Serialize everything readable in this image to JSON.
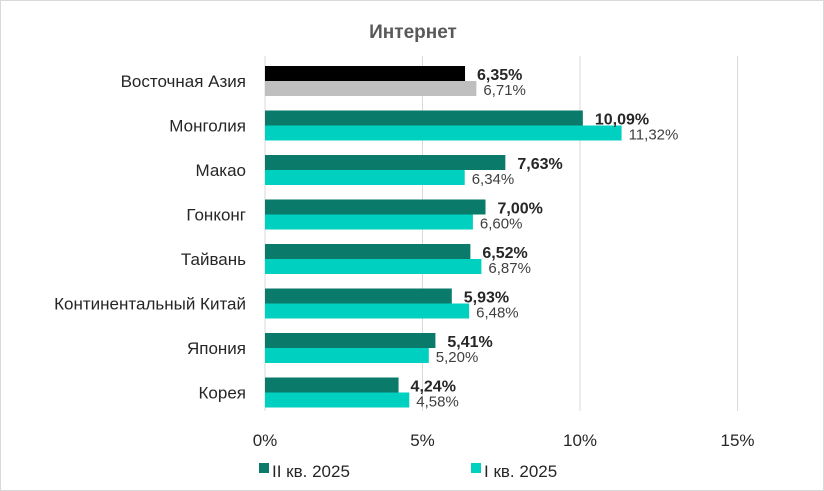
{
  "chart_data": {
    "type": "bar",
    "orientation": "horizontal",
    "title": "Интернет",
    "categories": [
      "Восточная Азия",
      "Монголия",
      "Макао",
      "Гонконг",
      "Тайвань",
      "Континентальный Китай",
      "Япония",
      "Корея"
    ],
    "series": [
      {
        "name": "II кв. 2025",
        "values": [
          6.35,
          10.09,
          7.63,
          7.0,
          6.52,
          5.93,
          5.41,
          4.24
        ],
        "labels": [
          "6,35%",
          "10,09%",
          "7,63%",
          "7,00%",
          "6,52%",
          "5,93%",
          "5,41%",
          "4,24%"
        ],
        "color": "#0a7a6a",
        "highlight_color": "#000000"
      },
      {
        "name": "I кв. 2025",
        "values": [
          6.71,
          11.32,
          6.34,
          6.6,
          6.87,
          6.48,
          5.2,
          4.58
        ],
        "labels": [
          "6,71%",
          "11,32%",
          "6,34%",
          "6,60%",
          "6,87%",
          "6,48%",
          "5,20%",
          "4,58%"
        ],
        "color": "#00d0c0",
        "highlight_color": "#bfbfbf"
      }
    ],
    "xlim": [
      0,
      15
    ],
    "xticks": [
      0,
      5,
      10,
      15
    ],
    "xtick_labels": [
      "0%",
      "5%",
      "10%",
      "15%"
    ],
    "grid": "vertical",
    "legend_position": "bottom",
    "gridline_color": "#d9d9d9"
  }
}
